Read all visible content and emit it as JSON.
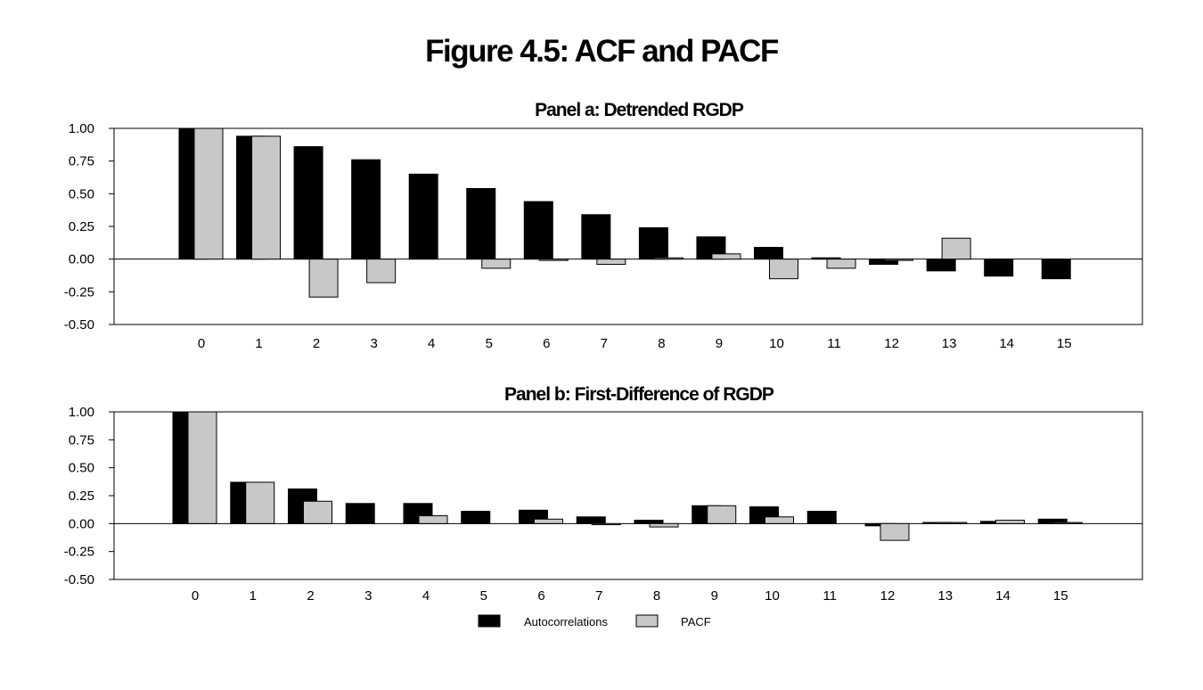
{
  "title": "Figure 4.5: ACF and PACF",
  "legend": {
    "acf_label": "Autocorrelations",
    "pacf_label": "PACF"
  },
  "colors": {
    "acf": "#000000",
    "pacf": "#c8c8c8",
    "axis": "#000000"
  },
  "chart_data": [
    {
      "type": "bar",
      "title": "Panel a: Detrended RGDP",
      "categories": [
        "0",
        "1",
        "2",
        "3",
        "4",
        "5",
        "6",
        "7",
        "8",
        "9",
        "10",
        "11",
        "12",
        "13",
        "14",
        "15"
      ],
      "ylim": [
        -0.5,
        1.0
      ],
      "yticks": [
        "1.00",
        "0.75",
        "0.50",
        "0.25",
        "0.00",
        "-0.25",
        "-0.50"
      ],
      "ytick_values": [
        1.0,
        0.75,
        0.5,
        0.25,
        0.0,
        -0.25,
        -0.5
      ],
      "grid": false,
      "series": [
        {
          "name": "Autocorrelations",
          "values": [
            1.0,
            0.94,
            0.86,
            0.76,
            0.65,
            0.54,
            0.44,
            0.34,
            0.24,
            0.17,
            0.09,
            0.01,
            -0.04,
            -0.09,
            -0.13,
            -0.15
          ]
        },
        {
          "name": "PACF",
          "values": [
            1.0,
            0.94,
            -0.29,
            -0.18,
            0.0,
            -0.07,
            -0.01,
            -0.04,
            0.01,
            0.04,
            -0.15,
            -0.07,
            -0.01,
            0.16,
            0.0,
            0.0
          ]
        }
      ]
    },
    {
      "type": "bar",
      "title": "Panel b: First-Difference of RGDP",
      "categories": [
        "0",
        "1",
        "2",
        "3",
        "4",
        "5",
        "6",
        "7",
        "8",
        "9",
        "10",
        "11",
        "12",
        "13",
        "14",
        "15"
      ],
      "ylim": [
        -0.5,
        1.0
      ],
      "yticks": [
        "1.00",
        "0.75",
        "0.50",
        "0.25",
        "0.00",
        "-0.25",
        "-0.50"
      ],
      "ytick_values": [
        1.0,
        0.75,
        0.5,
        0.25,
        0.0,
        -0.25,
        -0.5
      ],
      "grid": false,
      "series": [
        {
          "name": "Autocorrelations",
          "values": [
            1.0,
            0.37,
            0.31,
            0.18,
            0.18,
            0.11,
            0.12,
            0.06,
            0.03,
            0.16,
            0.15,
            0.11,
            -0.02,
            0.01,
            0.02,
            0.04
          ]
        },
        {
          "name": "PACF",
          "values": [
            1.0,
            0.37,
            0.2,
            0.0,
            0.07,
            0.0,
            0.04,
            -0.01,
            -0.03,
            0.16,
            0.06,
            0.0,
            -0.15,
            0.01,
            0.03,
            0.01
          ]
        }
      ]
    }
  ]
}
